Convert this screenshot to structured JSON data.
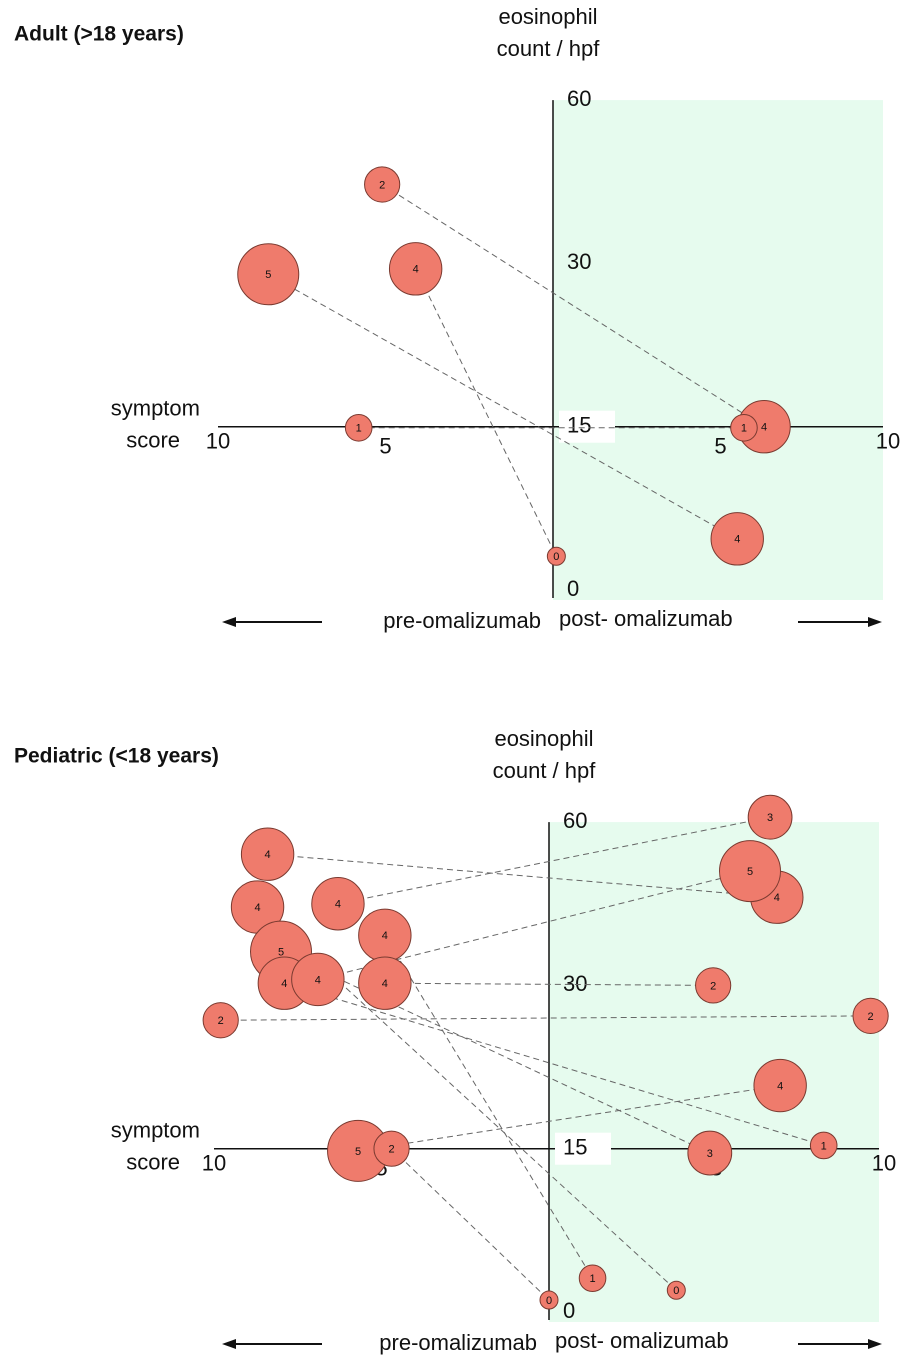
{
  "chart_data": [
    {
      "type": "scatter",
      "title": "Adult (>18 years)",
      "y_label": [
        "eosinophil",
        "count / hpf"
      ],
      "x_label": [
        "symptom",
        "score"
      ],
      "pre_label": "pre-omalizumab",
      "post_label": "post- omalizumab",
      "color": "#ef7b6c",
      "xlim": [
        0,
        10
      ],
      "xticks": [
        5,
        10
      ],
      "ylim": [
        0,
        60
      ],
      "yticks": [
        0,
        15,
        30,
        60
      ],
      "pre": {
        "x": [
          5.1,
          8.5,
          4.1,
          5.8
        ],
        "y": [
          44.5,
          29,
          29.5,
          14.9
        ],
        "size": [
          2,
          5,
          4,
          1
        ]
      },
      "post": {
        "x": [
          6.3,
          5.5,
          0.1,
          5.7
        ],
        "y": [
          15,
          4.7,
          3.1,
          14.9
        ],
        "size": [
          4,
          4,
          0,
          1
        ]
      }
    },
    {
      "type": "scatter",
      "title": "Pediatric (<18 years)",
      "y_label": [
        "eosinophil",
        "count / hpf"
      ],
      "x_label": [
        "symptom",
        "score"
      ],
      "pre_label": "pre-omalizumab",
      "post_label": "post- omalizumab",
      "color": "#ef7b6c",
      "xlim": [
        0,
        10
      ],
      "xticks": [
        5,
        10
      ],
      "ylim": [
        0,
        60
      ],
      "yticks": [
        0,
        15,
        30,
        60
      ],
      "pre": {
        "x": [
          8.4,
          8.7,
          6.3,
          4.9,
          8.0,
          7.9,
          6.9,
          4.9,
          9.8,
          5.7,
          4.7
        ],
        "y": [
          54.1,
          44.4,
          45,
          39.2,
          36.2,
          30.4,
          31.1,
          30.4,
          26.8,
          14.8,
          15
        ],
        "size": [
          4,
          4,
          4,
          4,
          5,
          4,
          4,
          4,
          2,
          5,
          2
        ]
      },
      "post": {
        "x": [
          6.8,
          3.8,
          6.6,
          1.3,
          4.8,
          8.2,
          6.0,
          4.9,
          9.6,
          6.9,
          0
        ],
        "y": [
          46.2,
          2.0,
          60.9,
          3.1,
          14.6,
          15.3,
          51,
          30,
          27.2,
          20.8,
          1.1
        ],
        "size": [
          4,
          0,
          3,
          1,
          3,
          1,
          5,
          2,
          2,
          4,
          0
        ]
      }
    }
  ]
}
